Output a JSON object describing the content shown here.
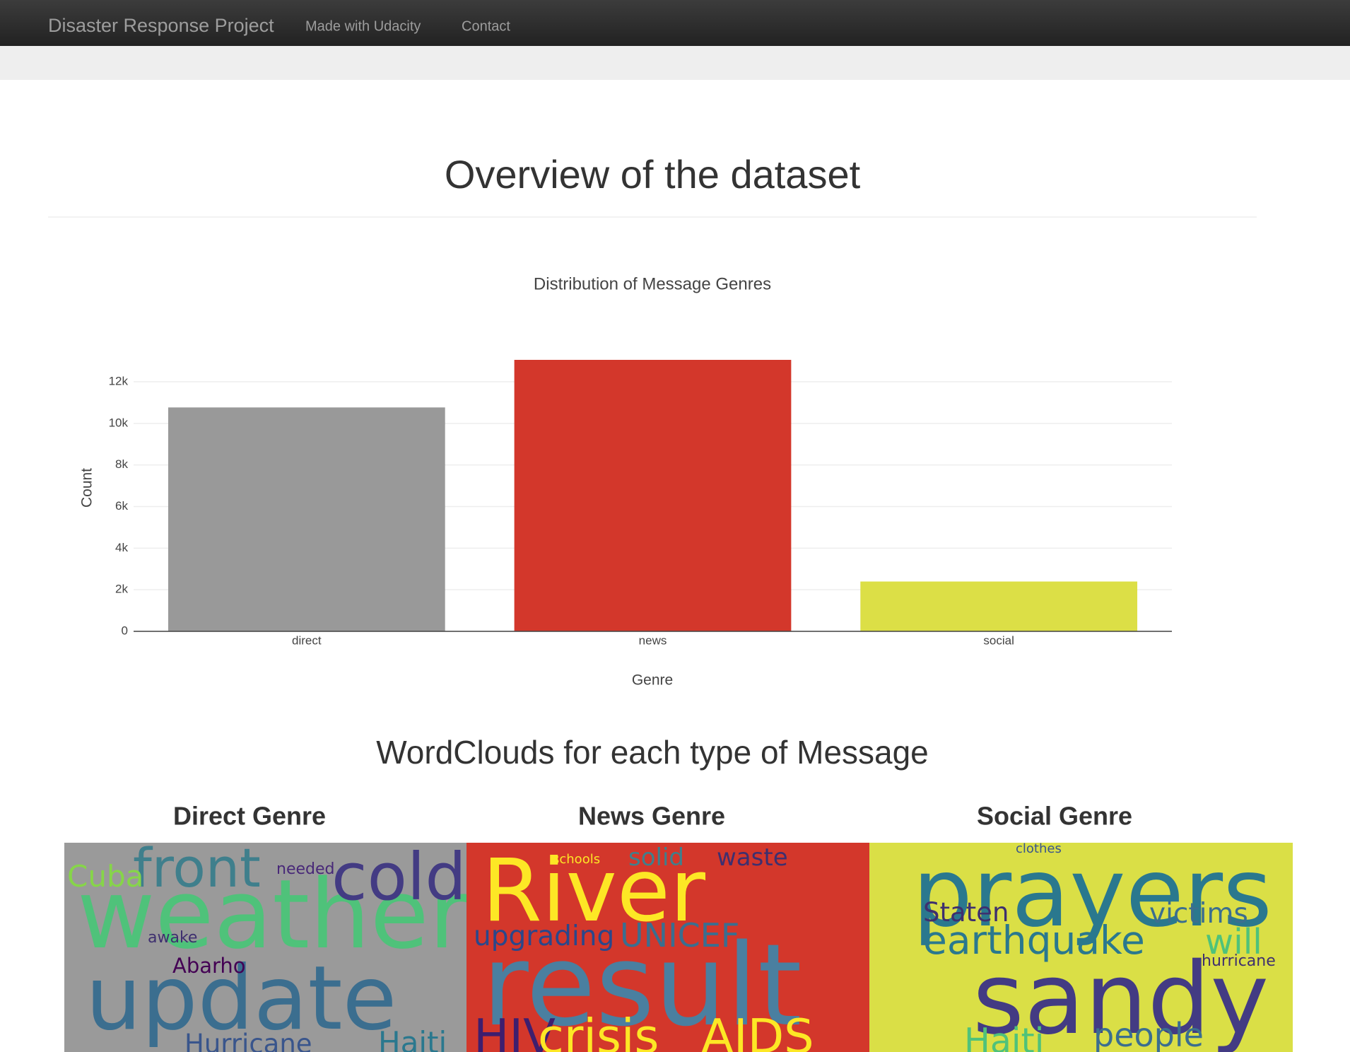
{
  "navbar": {
    "brand": "Disaster Response Project",
    "links": [
      "Made with Udacity",
      "Contact"
    ]
  },
  "heading": "Overview of the dataset",
  "chart_data": {
    "type": "bar",
    "title": "Distribution of Message Genres",
    "x_label": "Genre",
    "y_label": "Count",
    "categories": [
      "direct",
      "news",
      "social"
    ],
    "values": [
      10766,
      13054,
      2396
    ],
    "colors": [
      "#999999",
      "#d3372b",
      "#dcdf46"
    ],
    "ylim": [
      0,
      13700
    ],
    "yticks": [
      0,
      {
        "value": 2000,
        "label": "2k"
      },
      {
        "value": 4000,
        "label": "4k"
      },
      {
        "value": 6000,
        "label": "6k"
      },
      {
        "value": 8000,
        "label": "8k"
      },
      {
        "value": 10000,
        "label": "10k"
      },
      {
        "value": 12000,
        "label": "12k"
      }
    ],
    "grid": true
  },
  "wordclouds": {
    "heading": "WordClouds for each type of Message",
    "panels": [
      {
        "title": "Direct Genre",
        "words": [
          "weather",
          "update",
          "front",
          "cold",
          "Cuba",
          "Hurricane",
          "Haiti",
          "Abarho",
          "needed",
          "awake"
        ]
      },
      {
        "title": "News Genre",
        "words": [
          "River",
          "result",
          "HIV",
          "crisis",
          "AIDS",
          "upgrading",
          "UNICEF",
          "solid",
          "waste",
          "schools"
        ]
      },
      {
        "title": "Social Genre",
        "words": [
          "prayers",
          "sandy",
          "earthquake",
          "Staten",
          "victims",
          "Haiti",
          "people",
          "will",
          "hurricane",
          "clothes"
        ]
      }
    ]
  }
}
